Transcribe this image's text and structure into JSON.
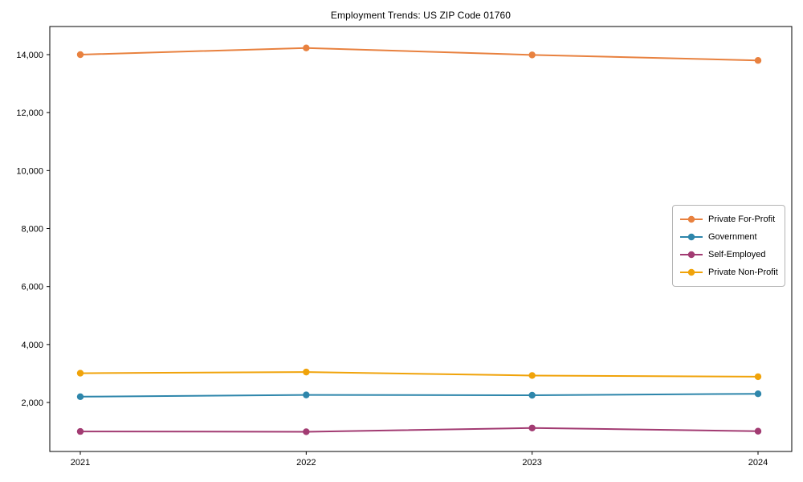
{
  "chart_data": {
    "type": "line",
    "title": "Employment Trends: US ZIP Code 01760",
    "xlabel": "",
    "ylabel": "",
    "x_labels": [
      "2021",
      "2022",
      "2023",
      "2024"
    ],
    "series": [
      {
        "name": "Private For-Profit",
        "color": "#E8813F",
        "values": [
          14000,
          14230,
          13990,
          13800
        ]
      },
      {
        "name": "Government",
        "color": "#2E86AB",
        "values": [
          2200,
          2260,
          2250,
          2300
        ]
      },
      {
        "name": "Self-Employed",
        "color": "#A23B72",
        "values": [
          1000,
          990,
          1120,
          1010
        ]
      },
      {
        "name": "Private Non-Profit",
        "color": "#F0A30A",
        "values": [
          3010,
          3050,
          2930,
          2890
        ]
      }
    ],
    "y_ticks": [
      2000,
      4000,
      6000,
      8000,
      10000,
      12000,
      14000
    ],
    "ylim": [
      310,
      14970
    ],
    "grid": false,
    "legend_position": "center right",
    "spine_color": "#000000",
    "background": "#ffffff"
  }
}
